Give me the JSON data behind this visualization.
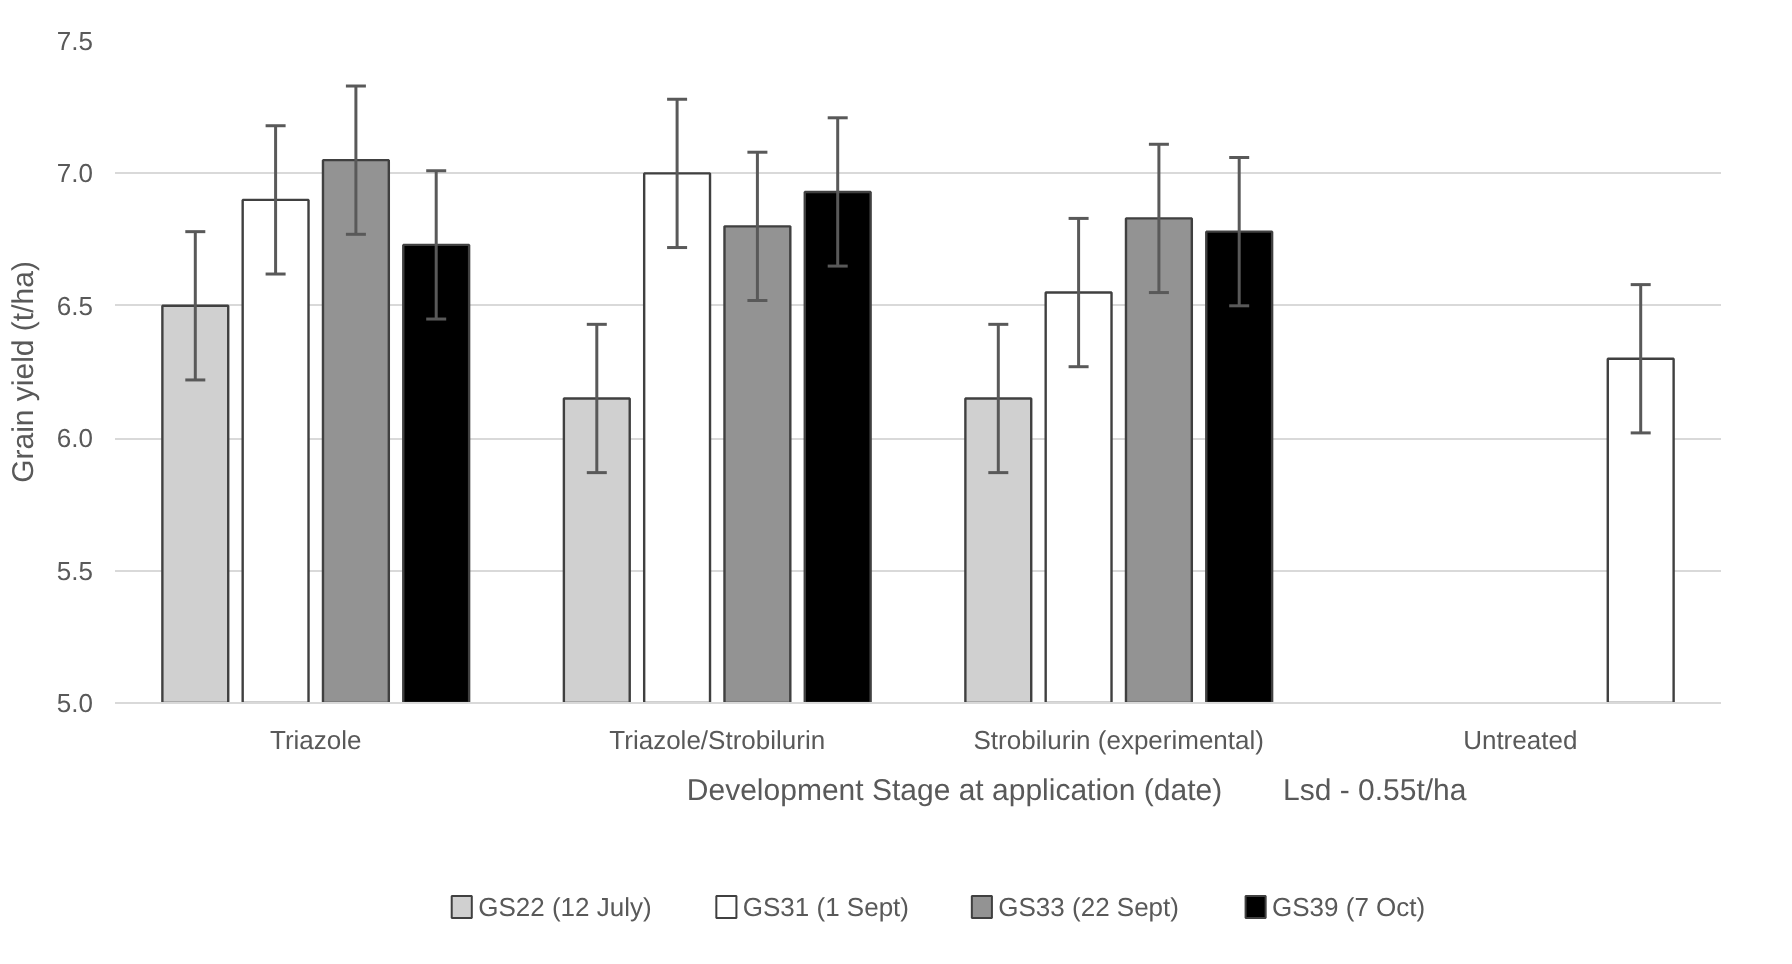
{
  "chart_data": {
    "type": "bar",
    "ylabel": "Grain yield (t/ha)",
    "xlabel": "Development Stage at application (date)",
    "annotations": [
      "Lsd - 0.55t/ha"
    ],
    "categories": [
      "Triazole",
      "Triazole/Strobilurin",
      "Strobilurin (experimental)",
      "Untreated"
    ],
    "series": [
      {
        "name": "GS22 (12 July)",
        "color": "#d0d0d0",
        "values": [
          6.5,
          6.15,
          6.15,
          null
        ],
        "errors": [
          0.28,
          0.28,
          0.28,
          null
        ]
      },
      {
        "name": "GS31 (1 Sept)",
        "color": "#ffffff",
        "values": [
          6.9,
          7.0,
          6.55,
          null
        ],
        "errors": [
          0.28,
          0.28,
          0.28,
          null
        ]
      },
      {
        "name": "GS33 (22 Sept)",
        "color": "#939393",
        "values": [
          7.05,
          6.8,
          6.83,
          null
        ],
        "errors": [
          0.28,
          0.28,
          0.28,
          null
        ]
      },
      {
        "name": "GS39 (7 Oct)",
        "color": "#000000",
        "colors": [
          "#000000",
          "#000000",
          "#000000",
          "#ffffff"
        ],
        "values": [
          6.73,
          6.93,
          6.78,
          6.3
        ],
        "errors": [
          0.28,
          0.28,
          0.28,
          0.28
        ]
      }
    ],
    "ylim": [
      5.0,
      7.5
    ],
    "yticks": [
      {
        "value": 5.0,
        "label": "5.0"
      },
      {
        "value": 5.5,
        "label": "5.5"
      },
      {
        "value": 6.0,
        "label": "6.0"
      },
      {
        "value": 6.5,
        "label": "6.5"
      },
      {
        "value": 7.0,
        "label": "7.0"
      },
      {
        "value": 7.5,
        "label": "7.5"
      }
    ],
    "grid": "y",
    "legend": "bottom"
  }
}
